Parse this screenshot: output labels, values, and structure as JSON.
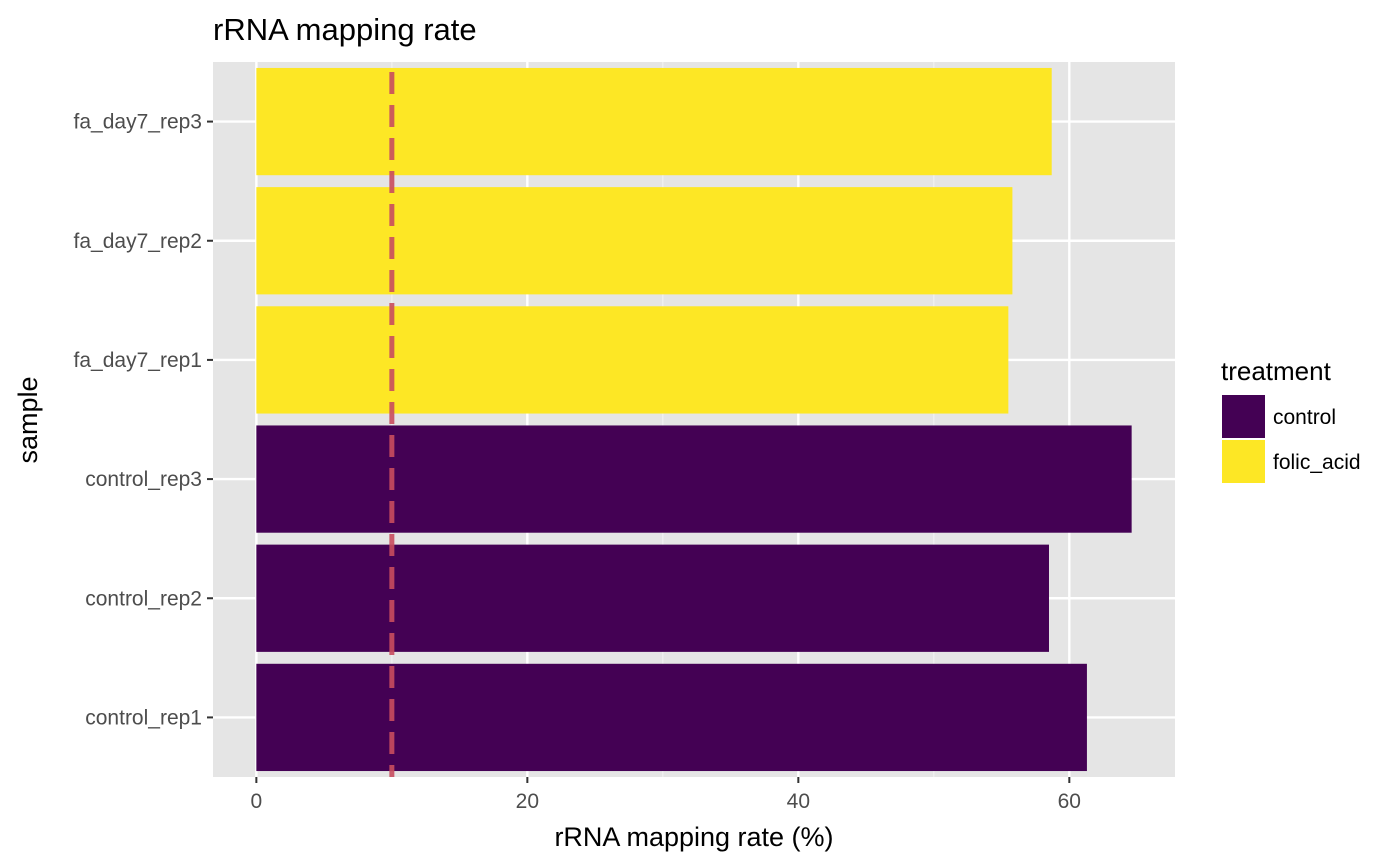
{
  "chart_data": {
    "type": "bar",
    "orientation": "horizontal",
    "title": "rRNA mapping rate",
    "xlabel": "rRNA mapping rate (%)",
    "ylabel": "sample",
    "xlim": [
      -3.2,
      67.8
    ],
    "x_ticks": [
      0,
      20,
      40,
      60
    ],
    "x_tick_labels": [
      "0",
      "20",
      "40",
      "60"
    ],
    "grid": true,
    "background_color": "#e5e5e5",
    "categories": [
      "control_rep1",
      "control_rep2",
      "control_rep3",
      "fa_day7_rep1",
      "fa_day7_rep2",
      "fa_day7_rep3"
    ],
    "values": [
      61.3,
      58.5,
      64.6,
      55.5,
      55.8,
      58.7
    ],
    "groups": [
      "control",
      "control",
      "control",
      "folic_acid",
      "folic_acid",
      "folic_acid"
    ],
    "reference_line": {
      "x": 10,
      "style": "dashed",
      "color": "#c84d5f"
    },
    "legend": {
      "title": "treatment",
      "position": "right",
      "entries": [
        {
          "label": "control",
          "color": "#440154"
        },
        {
          "label": "folic_acid",
          "color": "#fde725"
        }
      ]
    }
  }
}
